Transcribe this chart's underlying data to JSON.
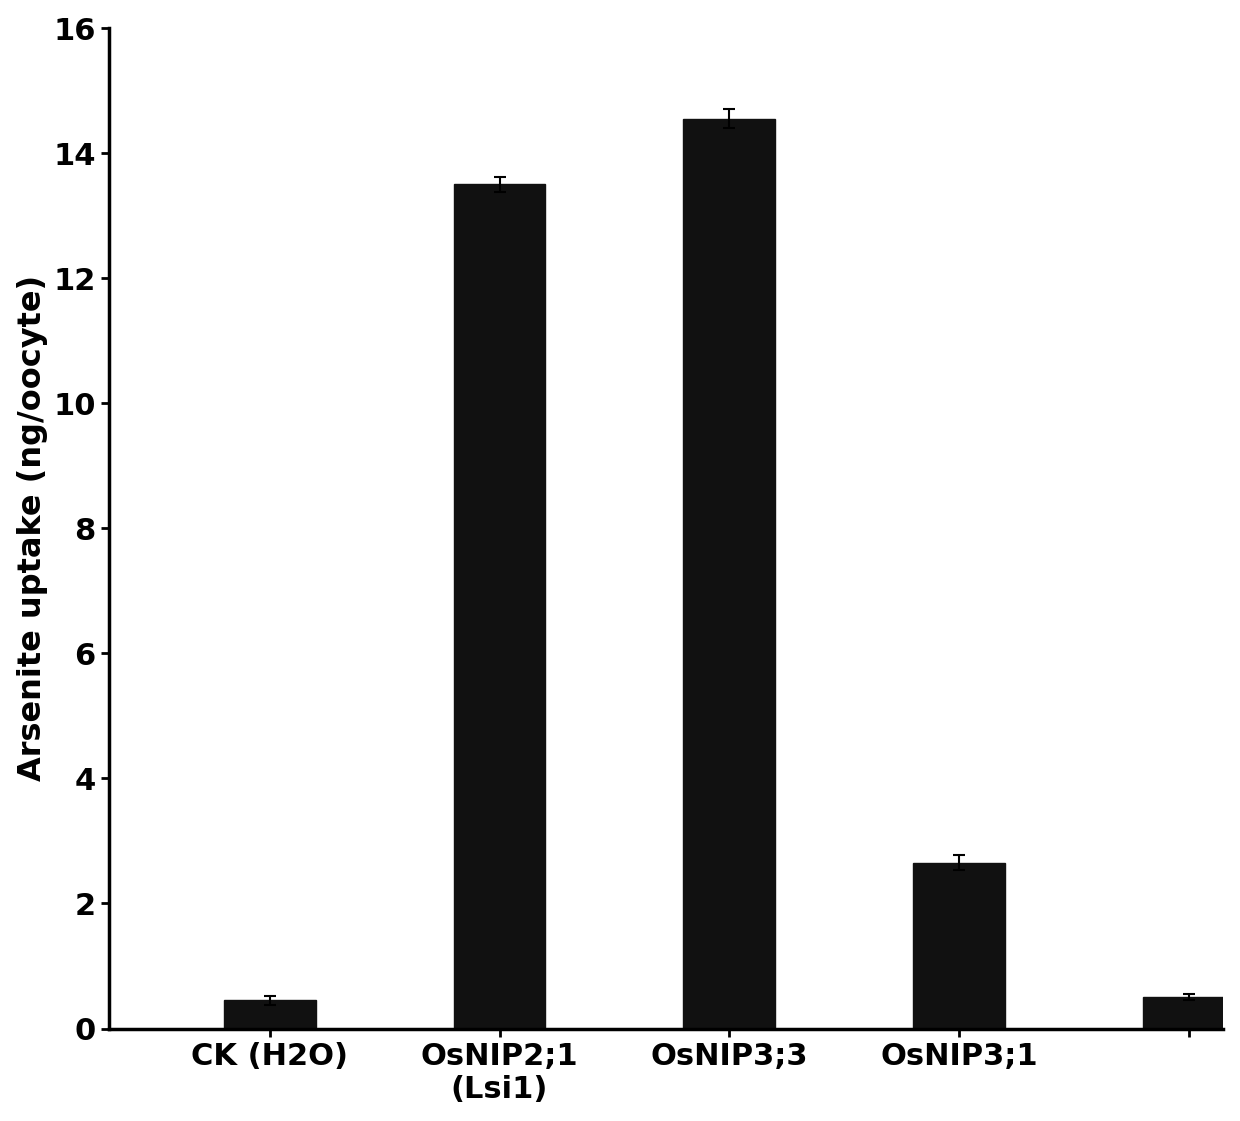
{
  "categories": [
    "CK (H2O)",
    "OsNIP2;1\n(Lsi1)",
    "OsNIP3;3",
    "OsNIP3;1",
    ""
  ],
  "values": [
    0.45,
    13.5,
    14.55,
    2.65,
    0.5
  ],
  "errors": [
    0.07,
    0.12,
    0.15,
    0.12,
    0.05
  ],
  "bar_color": "#111111",
  "ylabel": "Arsenite uptake (ng/oocyte)",
  "ylim": [
    0,
    16
  ],
  "yticks": [
    0,
    2,
    4,
    6,
    8,
    10,
    12,
    14,
    16
  ],
  "bar_width": 0.4,
  "background_color": "#ffffff",
  "ylabel_fontsize": 23,
  "tick_fontsize": 22,
  "xlabel_fontsize": 22,
  "figsize": [
    12.4,
    11.21
  ],
  "dpi": 100,
  "xlim_left": -0.7,
  "xlim_right": 4.15
}
